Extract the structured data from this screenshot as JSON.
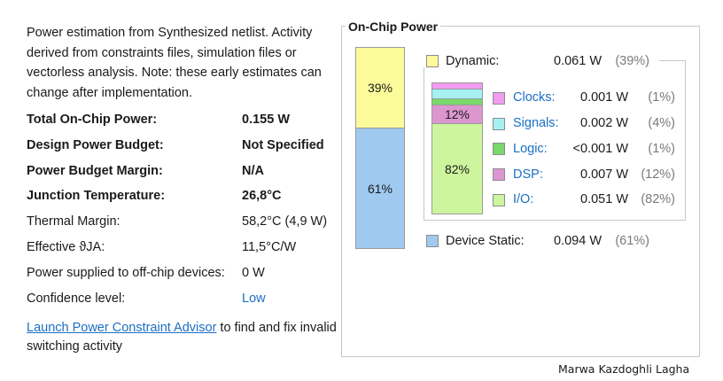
{
  "intro_text": "Power estimation from Synthesized netlist. Activity derived from constraints files, simulation files or vectorless analysis. Note: these early estimates can change after implementation.",
  "summary": [
    {
      "label": "Total On-Chip Power:",
      "value": "0.155 W",
      "bold": true
    },
    {
      "label": "Design Power Budget:",
      "value": "Not Specified",
      "bold": true
    },
    {
      "label": "Power Budget Margin:",
      "value": "N/A",
      "bold": true
    },
    {
      "label": "Junction Temperature:",
      "value": "26,8°C",
      "bold": true
    },
    {
      "label": "Thermal Margin:",
      "value": "58,2°C (4,9 W)",
      "bold": false
    },
    {
      "label": "Effective ϑJA:",
      "value": "11,5°C/W",
      "bold": false
    },
    {
      "label": "Power supplied to off-chip devices:",
      "value": "0 W",
      "bold": false
    },
    {
      "label": "Confidence level:",
      "value": "Low",
      "bold": false,
      "link": true
    }
  ],
  "advisor": {
    "link_text": "Launch Power Constraint Advisor",
    "suffix_text": " to find and fix invalid switching activity"
  },
  "panel": {
    "title": "On-Chip Power",
    "dynamic_bar_label": "39%",
    "static_bar_label": "61%",
    "dynamic": {
      "name": "Dynamic:",
      "value": "0.061 W",
      "pct": "(39%)",
      "color": "#fbfb9b",
      "fraction": 0.39
    },
    "static": {
      "name": "Device Static:",
      "value": "0.094 W",
      "pct": "(61%)",
      "color": "#9fc9ee",
      "fraction": 0.61
    },
    "breakdown_labels": {
      "dsp": "12%",
      "io": "82%"
    },
    "breakdown": [
      {
        "name": "Clocks:",
        "value": "0.001 W",
        "pct": "(1%)",
        "color": "#f29cf0",
        "fraction": 0.01
      },
      {
        "name": "Signals:",
        "value": "0.002 W",
        "pct": "(4%)",
        "color": "#a6f0f2",
        "fraction": 0.04
      },
      {
        "name": "Logic:",
        "value": "<0.001 W",
        "pct": "(1%)",
        "color": "#79d96b",
        "fraction": 0.01
      },
      {
        "name": "DSP:",
        "value": "0.007 W",
        "pct": "(12%)",
        "color": "#dc97d0",
        "fraction": 0.12
      },
      {
        "name": "I/O:",
        "value": "0.051 W",
        "pct": "(82%)",
        "color": "#cdf59e",
        "fraction": 0.82
      }
    ]
  },
  "watermark": "Marwa Kazdoghli Lagha"
}
